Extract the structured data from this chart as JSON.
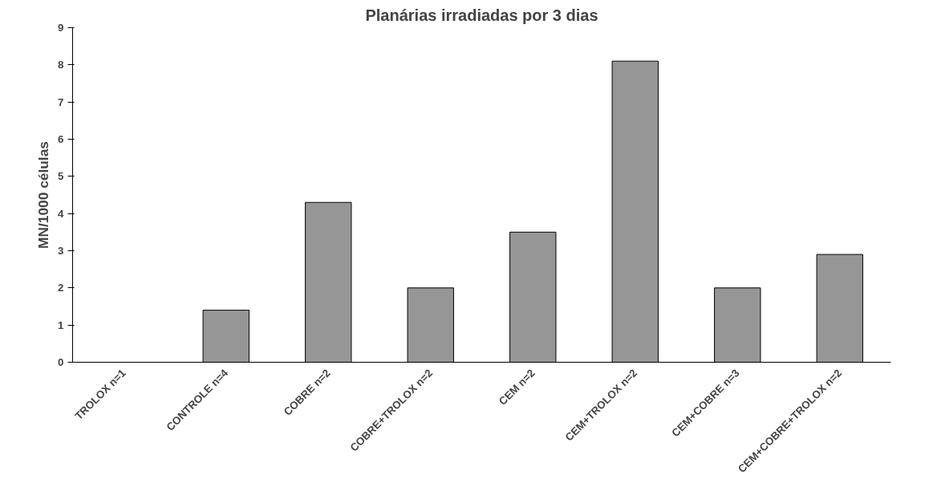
{
  "chart_data": {
    "type": "bar",
    "title": "Planárias irradiadas por 3 dias",
    "ylabel": "MN/1000 células",
    "categories": [
      "TROLOX n=1",
      "CONTROLE n=4",
      "COBRE n=2",
      "COBRE+TROLOX n=2",
      "CEM n=2",
      "CEM+TROLOX n=2",
      "CEM+COBRE n=3",
      "CEM+COBRE+TROLOX n=2"
    ],
    "values": [
      0,
      1.4,
      4.3,
      2,
      3.5,
      8.1,
      2,
      2.9
    ],
    "color": "#969696",
    "ylim": [
      0,
      9
    ],
    "yticks": [
      0,
      1,
      2,
      3,
      4,
      5,
      6,
      7,
      8,
      9
    ],
    "grid": false
  }
}
